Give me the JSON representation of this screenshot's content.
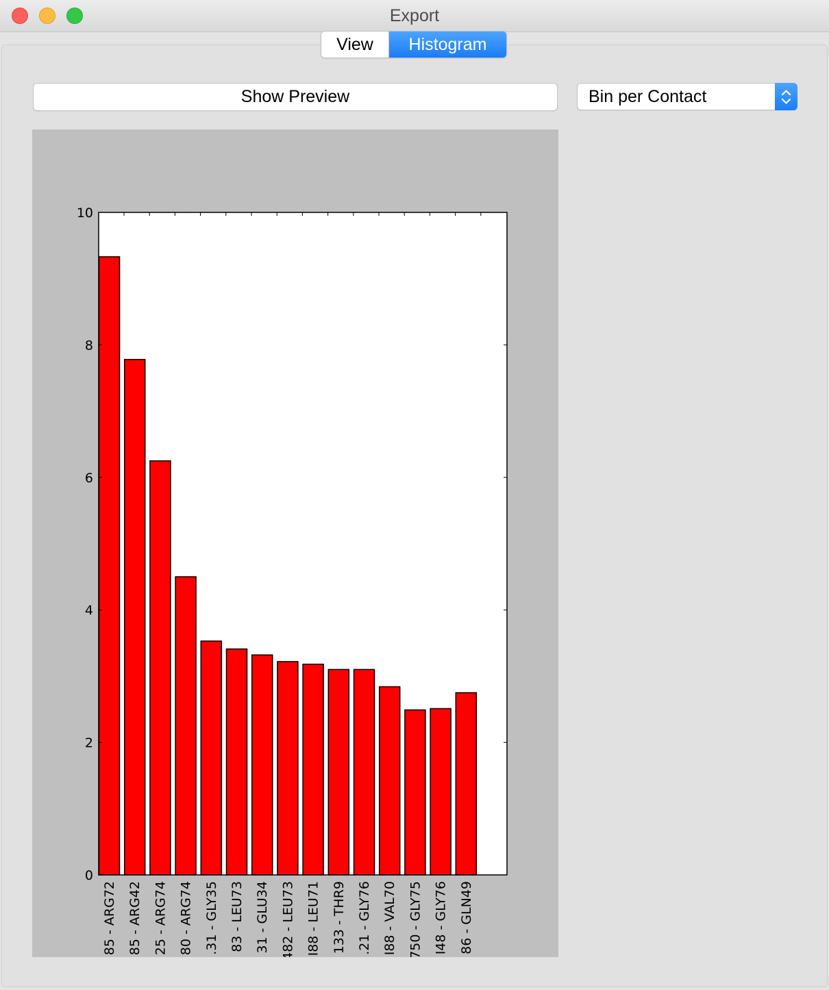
{
  "window": {
    "title": "Export"
  },
  "tabs": [
    {
      "label": "View",
      "selected": false
    },
    {
      "label": "Histogram",
      "selected": true
    }
  ],
  "controls": {
    "preview_button_label": "Show Preview",
    "bin_select_value": "Bin per Contact"
  },
  "colors": {
    "accent": "#1a7ef5",
    "bar_fill": "#ff0000",
    "plot_background": "#bfbfbf"
  },
  "chart_data": {
    "type": "bar",
    "title": "",
    "xlabel": "",
    "ylabel": "",
    "ylim": [
      0,
      10
    ],
    "yticks": [
      0,
      2,
      4,
      6,
      8,
      10
    ],
    "grid": false,
    "categories": [
      "85 - ARG72",
      "85 - ARG42",
      "25 - ARG74",
      "80 - ARG74",
      ".31 - GLY35",
      "83 - LEU73",
      "31 - GLU34",
      "482 - LEU73",
      "I88 - LEU71",
      "133 - THR9",
      ".21 - GLY76",
      "I88 - VAL70",
      "750 - GLY75",
      "I48 - GLY76",
      "86 - GLN49"
    ],
    "values": [
      9.33,
      7.78,
      6.25,
      4.5,
      3.53,
      3.41,
      3.32,
      3.22,
      3.18,
      3.1,
      3.1,
      2.84,
      2.49,
      2.51,
      2.75
    ]
  }
}
